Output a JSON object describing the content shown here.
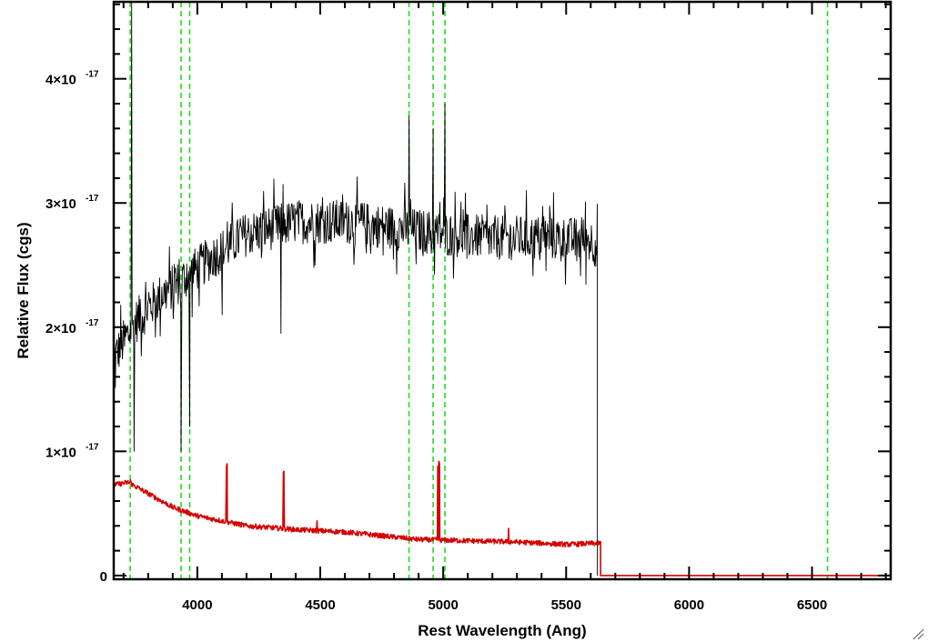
{
  "chart_data": {
    "type": "line",
    "title": "",
    "xlabel": "Rest Wavelength (Ang)",
    "ylabel": "Relative Flux (cgs)",
    "xlim": [
      3660,
      6820
    ],
    "ylim": [
      -0.03,
      4.62
    ],
    "y_scale_exponent": -17,
    "x_ticks": [
      4000,
      4500,
      5000,
      5500,
      6000,
      6500
    ],
    "y_ticks": [
      {
        "value": 0,
        "mantissa": "0",
        "exponent": ""
      },
      {
        "value": 1,
        "mantissa": "1×10",
        "exponent": "-17"
      },
      {
        "value": 2,
        "mantissa": "2×10",
        "exponent": "-17"
      },
      {
        "value": 3,
        "mantissa": "3×10",
        "exponent": "-17"
      },
      {
        "value": 4,
        "mantissa": "4×10",
        "exponent": "-17"
      }
    ],
    "grid": false,
    "legend": "none",
    "vertical_lines": [
      3727,
      3934,
      3969,
      4861,
      4959,
      5007,
      6563
    ],
    "series": [
      {
        "color": "#000000",
        "style": "noisy",
        "noise": 0.18,
        "x_end": 5627,
        "continuum": [
          [
            3660,
            1.75
          ],
          [
            3750,
            2.05
          ],
          [
            3850,
            2.25
          ],
          [
            3950,
            2.4
          ],
          [
            4050,
            2.55
          ],
          [
            4200,
            2.75
          ],
          [
            4400,
            2.85
          ],
          [
            4600,
            2.85
          ],
          [
            4800,
            2.8
          ],
          [
            5000,
            2.75
          ],
          [
            5200,
            2.72
          ],
          [
            5400,
            2.72
          ],
          [
            5600,
            2.7
          ],
          [
            5627,
            2.65
          ]
        ],
        "features": [
          {
            "x": 3733,
            "y": 4.62
          },
          {
            "x": 3743,
            "y": 1.0
          },
          {
            "x": 3934,
            "y": 1.0
          },
          {
            "x": 3969,
            "y": 1.2
          },
          {
            "x": 4101,
            "y": 2.1
          },
          {
            "x": 4340,
            "y": 1.95
          },
          {
            "x": 4861,
            "y": 3.7
          },
          {
            "x": 4959,
            "y": 3.6
          },
          {
            "x": 5007,
            "y": 3.8
          }
        ],
        "drop_to": 0
      },
      {
        "color": "#d40000",
        "style": "smooth",
        "noise": 0.02,
        "x_end": 5640,
        "continuum": [
          [
            3660,
            0.73
          ],
          [
            3720,
            0.75
          ],
          [
            3800,
            0.66
          ],
          [
            3900,
            0.55
          ],
          [
            4000,
            0.48
          ],
          [
            4100,
            0.44
          ],
          [
            4200,
            0.4
          ],
          [
            4400,
            0.37
          ],
          [
            4600,
            0.35
          ],
          [
            4800,
            0.31
          ],
          [
            4900,
            0.29
          ],
          [
            5100,
            0.28
          ],
          [
            5300,
            0.27
          ],
          [
            5500,
            0.25
          ],
          [
            5630,
            0.26
          ]
        ],
        "features": [
          {
            "x": 3728,
            "y": 0.77
          },
          {
            "x": 4119,
            "y": 0.88
          },
          {
            "x": 4121,
            "y": 0.9
          },
          {
            "x": 4350,
            "y": 0.83
          },
          {
            "x": 4352,
            "y": 0.84
          },
          {
            "x": 4487,
            "y": 0.44
          },
          {
            "x": 4978,
            "y": 0.88
          },
          {
            "x": 4982,
            "y": 0.92
          },
          {
            "x": 4985,
            "y": 0.9
          },
          {
            "x": 5266,
            "y": 0.38
          }
        ],
        "drop_to": 0,
        "tail_x_end": 6820
      }
    ]
  }
}
